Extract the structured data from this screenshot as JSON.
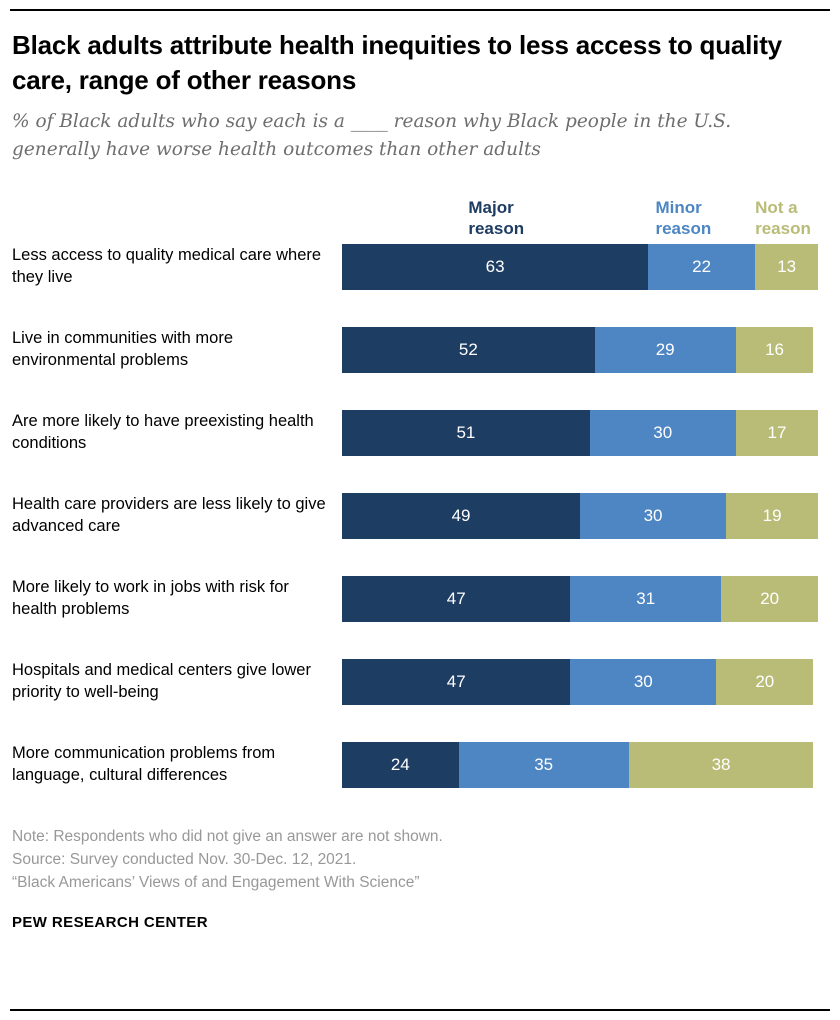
{
  "header": {
    "title": "Black adults attribute health inequities to less access to quality care, range of other reasons",
    "subtitle": "% of Black adults who say each is a ____ reason why Black people in the U.S. generally have worse health outcomes than other adults"
  },
  "chart_data": {
    "type": "bar",
    "variant": "horizontal-stacked",
    "value_unit": "%",
    "xlim": [
      0,
      100
    ],
    "legend_position": "top",
    "series": [
      {
        "key": "major",
        "name": "Major reason",
        "color": "#1e3d63"
      },
      {
        "key": "minor",
        "name": "Minor reason",
        "color": "#4d86c3"
      },
      {
        "key": "nota",
        "name": "Not a reason",
        "color": "#b9bc77"
      }
    ],
    "categories": [
      "Less access to quality medical care where they live",
      "Live in communities with more environmental problems",
      "Are more likely to have preexisting health conditions",
      "Health care providers are less likely to give advanced care",
      "More likely to work in jobs with risk for health problems",
      "Hospitals and medical centers give lower priority to well-being",
      "More communication problems from language, cultural differences"
    ],
    "rows": [
      {
        "label": "Less access to quality medical care where they live",
        "values": [
          63,
          22,
          13
        ]
      },
      {
        "label": "Live in communities with more environmental problems",
        "values": [
          52,
          29,
          16
        ]
      },
      {
        "label": "Are more likely to have preexisting health conditions",
        "values": [
          51,
          30,
          17
        ]
      },
      {
        "label": "Health care providers are less likely to give advanced care",
        "values": [
          49,
          30,
          19
        ]
      },
      {
        "label": "More likely to work in jobs with risk for health problems",
        "values": [
          47,
          31,
          20
        ]
      },
      {
        "label": "Hospitals and medical centers give lower priority to well-being",
        "values": [
          47,
          30,
          20
        ]
      },
      {
        "label": "More communication problems from language, cultural differences",
        "values": [
          24,
          35,
          38
        ]
      }
    ]
  },
  "notes": {
    "note": "Note: Respondents who did not give an answer are not shown.",
    "source": "Source: Survey conducted Nov. 30-Dec. 12, 2021.",
    "report": "“Black Americans’ Views of and Engagement With Science”"
  },
  "footer": {
    "brand": "PEW RESEARCH CENTER"
  }
}
